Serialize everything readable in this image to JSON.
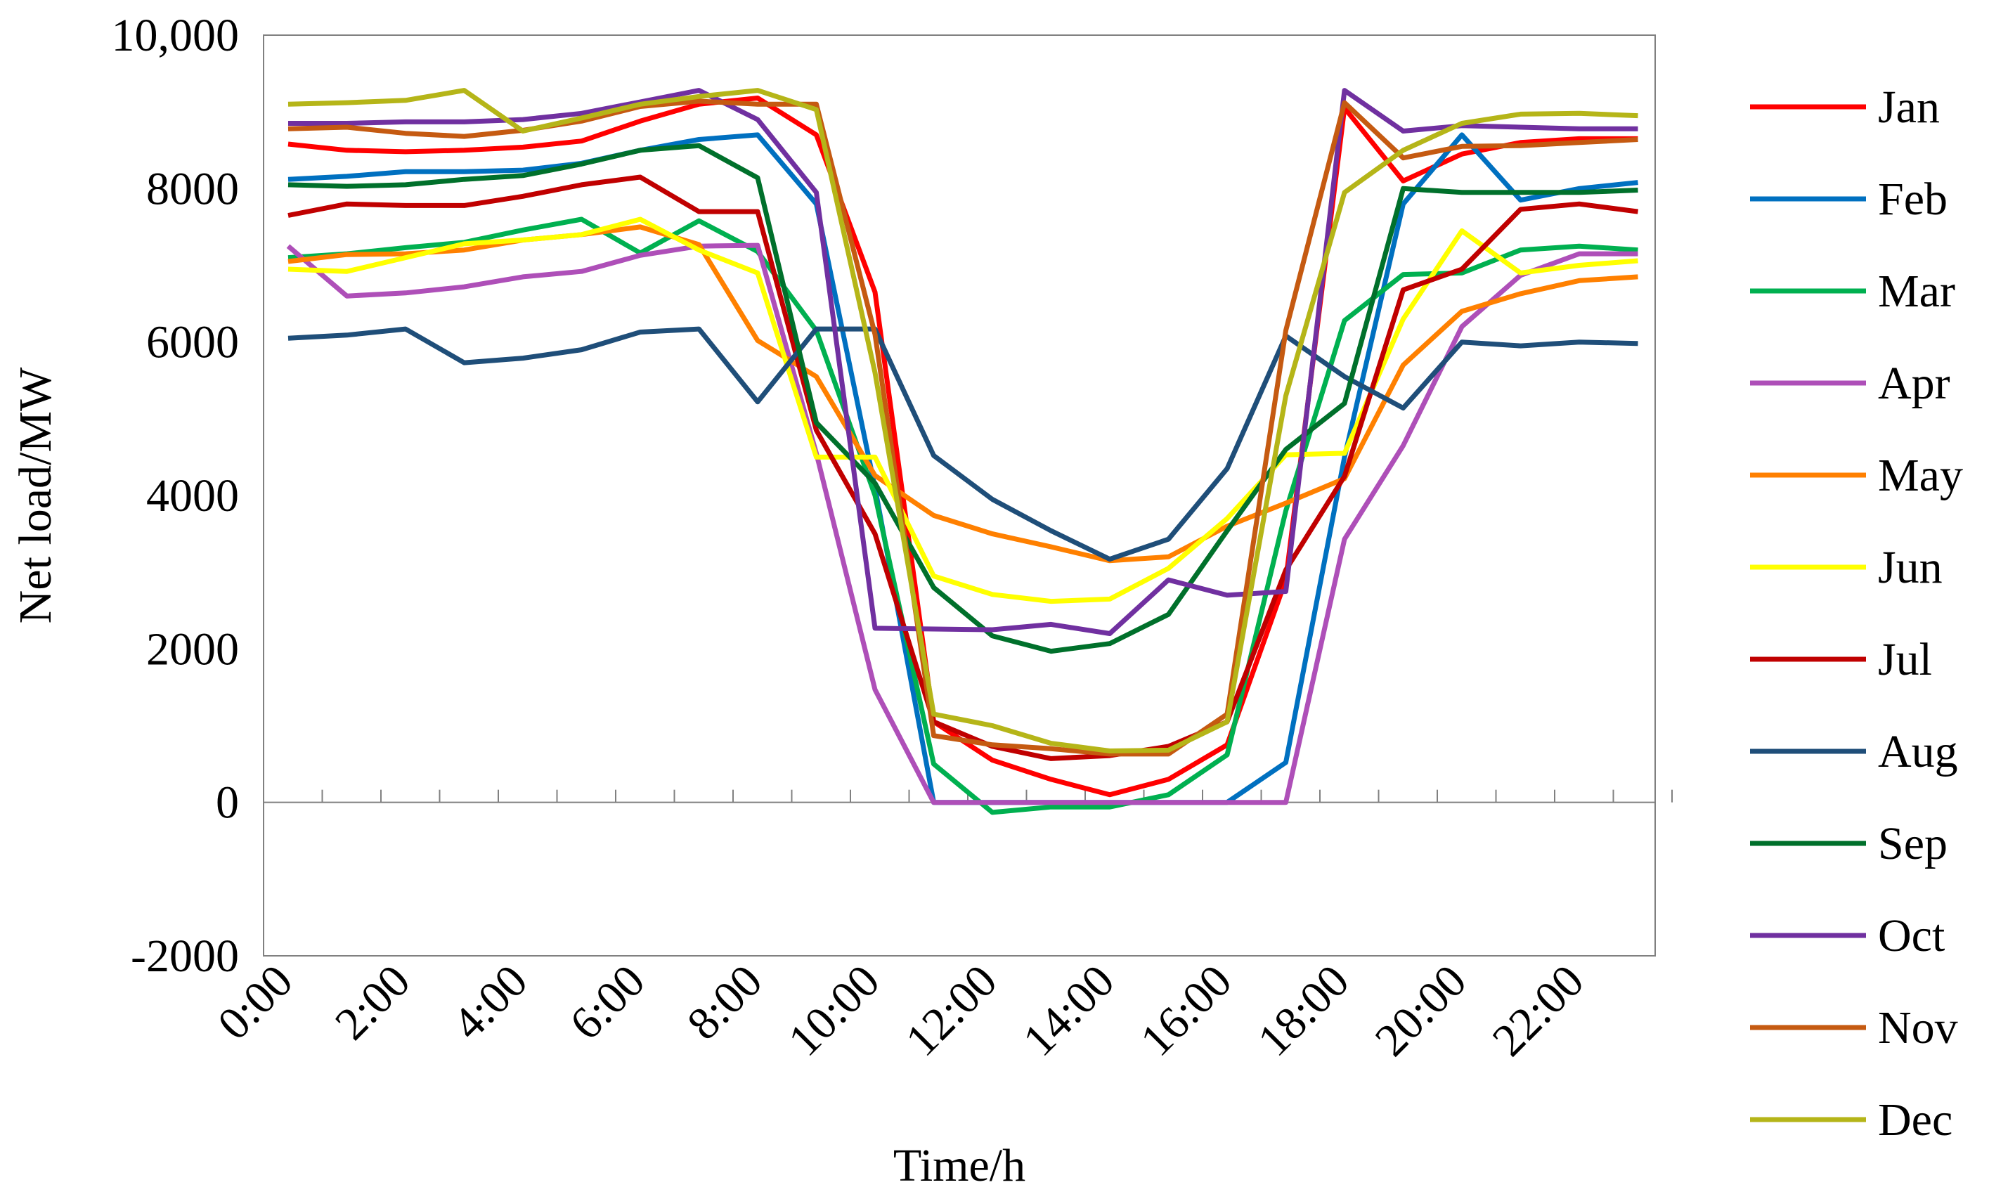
{
  "chart_data": {
    "type": "line",
    "title": "",
    "xlabel": "Time/h",
    "ylabel": "Net load/MW",
    "ylim": [
      -2000,
      10000
    ],
    "yticks": [
      -2000,
      0,
      2000,
      4000,
      6000,
      8000,
      10000
    ],
    "ytick_labels": [
      "-2000",
      "0",
      "2000",
      "4000",
      "6000",
      "8000",
      "10,000"
    ],
    "x": [
      0,
      1,
      2,
      3,
      4,
      5,
      6,
      7,
      8,
      9,
      10,
      11,
      12,
      13,
      14,
      15,
      16,
      17,
      18,
      19,
      20,
      21,
      22,
      23
    ],
    "xtick_positions": [
      0,
      2,
      4,
      6,
      8,
      10,
      12,
      14,
      16,
      18,
      20,
      22
    ],
    "xtick_labels": [
      "0:00",
      "2:00",
      "4:00",
      "6:00",
      "8:00",
      "10:00",
      "12:00",
      "14:00",
      "16:00",
      "18:00",
      "20:00",
      "22:00"
    ],
    "legend_position": "right",
    "series": [
      {
        "name": "Jan",
        "color": "#ff0000",
        "values": [
          8580,
          8500,
          8480,
          8500,
          8540,
          8620,
          8880,
          9100,
          9180,
          8700,
          6650,
          1050,
          550,
          300,
          100,
          300,
          750,
          2900,
          9050,
          8100,
          8450,
          8600,
          8650,
          8650
        ]
      },
      {
        "name": "Feb",
        "color": "#0070c0",
        "values": [
          8120,
          8160,
          8220,
          8220,
          8240,
          8330,
          8500,
          8640,
          8700,
          7800,
          4100,
          0,
          0,
          0,
          0,
          0,
          0,
          520,
          4500,
          7800,
          8700,
          7850,
          8000,
          8080
        ]
      },
      {
        "name": "Mar",
        "color": "#00b050",
        "values": [
          7100,
          7150,
          7230,
          7300,
          7460,
          7600,
          7160,
          7580,
          7180,
          6150,
          4000,
          500,
          -130,
          -60,
          -60,
          100,
          620,
          3800,
          6280,
          6880,
          6900,
          7200,
          7250,
          7200
        ]
      },
      {
        "name": "Apr",
        "color": "#ae4fb8",
        "values": [
          7250,
          6600,
          6640,
          6720,
          6850,
          6920,
          7130,
          7250,
          7260,
          4550,
          1470,
          0,
          0,
          0,
          0,
          0,
          0,
          0,
          3430,
          4650,
          6200,
          6870,
          7150,
          7150
        ]
      },
      {
        "name": "May",
        "color": "#ff8000",
        "values": [
          7050,
          7140,
          7150,
          7200,
          7330,
          7400,
          7500,
          7270,
          6020,
          5550,
          4260,
          3740,
          3500,
          3330,
          3150,
          3200,
          3600,
          3900,
          4220,
          5700,
          6400,
          6630,
          6800,
          6850
        ]
      },
      {
        "name": "Jun",
        "color": "#ffff00",
        "values": [
          6950,
          6920,
          7100,
          7280,
          7330,
          7400,
          7600,
          7200,
          6900,
          4500,
          4500,
          2950,
          2710,
          2620,
          2650,
          3050,
          3700,
          4530,
          4550,
          6300,
          7450,
          6900,
          7000,
          7060
        ]
      },
      {
        "name": "Jul",
        "color": "#c00000",
        "values": [
          7650,
          7800,
          7780,
          7780,
          7900,
          8050,
          8150,
          7700,
          7700,
          4850,
          3500,
          1050,
          730,
          570,
          610,
          730,
          1050,
          3030,
          4250,
          6680,
          6950,
          7730,
          7800,
          7700
        ]
      },
      {
        "name": "Aug",
        "color": "#1f4e79",
        "values": [
          6050,
          6090,
          6170,
          5730,
          5790,
          5900,
          6130,
          6170,
          5220,
          6170,
          6170,
          4520,
          3950,
          3540,
          3170,
          3430,
          4350,
          6080,
          5550,
          5140,
          6000,
          5950,
          6000,
          5980
        ]
      },
      {
        "name": "Sep",
        "color": "#00702b",
        "values": [
          8050,
          8030,
          8050,
          8120,
          8170,
          8320,
          8500,
          8560,
          8140,
          4950,
          4160,
          2800,
          2170,
          1970,
          2070,
          2450,
          3540,
          4600,
          5200,
          8000,
          7950,
          7950,
          7950,
          7980
        ]
      },
      {
        "name": "Oct",
        "color": "#7030a0",
        "values": [
          8850,
          8850,
          8870,
          8870,
          8900,
          8980,
          9130,
          9280,
          8900,
          7950,
          2270,
          2260,
          2250,
          2320,
          2200,
          2900,
          2700,
          2750,
          9280,
          8750,
          8820,
          8800,
          8780,
          8780
        ]
      },
      {
        "name": "Nov",
        "color": "#c55a11",
        "values": [
          8780,
          8800,
          8720,
          8680,
          8760,
          8880,
          9070,
          9140,
          9100,
          9100,
          6100,
          870,
          750,
          700,
          630,
          630,
          1150,
          6150,
          9120,
          8400,
          8550,
          8560,
          8600,
          8640
        ]
      },
      {
        "name": "Dec",
        "color": "#b5b518",
        "values": [
          9100,
          9120,
          9150,
          9280,
          8750,
          8920,
          9100,
          9200,
          9280,
          9030,
          5600,
          1150,
          1000,
          770,
          670,
          680,
          1050,
          5300,
          7950,
          8500,
          8850,
          8970,
          8980,
          8950
        ]
      }
    ]
  }
}
